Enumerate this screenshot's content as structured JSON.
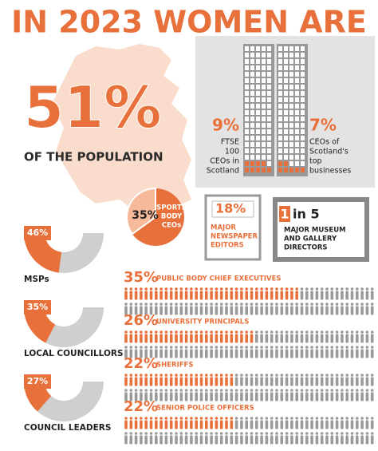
{
  "title": "IN 2023 WOMEN ARE",
  "population": {
    "value": 51,
    "label": "51%",
    "text": "OF THE POPULATION"
  },
  "towers": [
    {
      "value": 9,
      "label": "9%",
      "text": [
        "FTSE",
        "100",
        "CEOs in",
        "Scotland"
      ]
    },
    {
      "value": 7,
      "label": "7%",
      "text": [
        "CEOs of",
        "Scotland's",
        "top",
        "businesses"
      ]
    }
  ],
  "sports": {
    "value": 35,
    "label": "35%",
    "text": [
      "SPORTS",
      "BODY",
      "CEOs"
    ]
  },
  "newspaper": {
    "value": 18,
    "label": "18%",
    "text": [
      "MAJOR",
      "NEWSPAPER",
      "EDITORS"
    ]
  },
  "museum": {
    "label_a": "1",
    "label_b": "in 5",
    "text": [
      "MAJOR MUSEUM",
      "AND GALLERY",
      "DIRECTORS"
    ]
  },
  "gauges": [
    {
      "value": 46,
      "label": "46%",
      "name": "MSPs"
    },
    {
      "value": 35,
      "label": "35%",
      "name": "LOCAL COUNCILLORS"
    },
    {
      "value": 27,
      "label": "27%",
      "name": "COUNCIL LEADERS"
    }
  ],
  "people": [
    {
      "value": 35,
      "label": "35%",
      "name": "PUBLIC BODY CHIEF EXECUTIVES"
    },
    {
      "value": 26,
      "label": "26%",
      "name": "UNIVERSITY PRINCIPALS"
    },
    {
      "value": 22,
      "label": "22%",
      "name": "SHERIFFS"
    },
    {
      "value": 22,
      "label": "22%",
      "name": "SENIOR POLICE OFFICERS"
    }
  ]
}
